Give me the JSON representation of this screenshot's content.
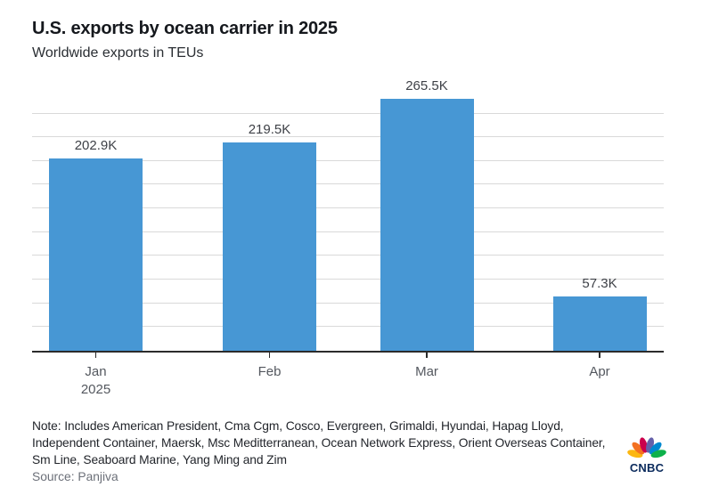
{
  "chart_data": {
    "type": "bar",
    "title": "U.S. exports by ocean carrier in 2025",
    "subtitle": "Worldwide exports in TEUs",
    "categories": [
      [
        "Jan",
        "2025"
      ],
      [
        "Feb"
      ],
      [
        "Mar"
      ],
      [
        "Apr"
      ]
    ],
    "values": [
      202900,
      219500,
      265500,
      57300
    ],
    "value_labels": [
      "202.9K",
      "219.5K",
      "265.5K",
      "57.3K"
    ],
    "unit": "TEUs",
    "ylim": [
      0,
      250000
    ],
    "gridline_step": 25000,
    "grid": true,
    "legend": false,
    "y_axis_labels_shown": false
  },
  "footer": {
    "note": "Note: Includes American President, Cma Cgm, Cosco, Evergreen, Grimaldi, Hyundai, Hapag Lloyd, Independent Container, Maersk, Msc Meditterranean, Ocean Network Express, Orient Overseas Container, Sm Line, Seaboard Marine, Yang Ming and Zim",
    "source": "Source: Panjiva",
    "logo_text": "CNBC",
    "logo_feather_colors": [
      "#FCB711",
      "#F37021",
      "#CC004C",
      "#6460AA",
      "#0089D0",
      "#0DB14B"
    ],
    "logo_text_color": "#0A2A5C"
  },
  "colors": {
    "bar": "#4797d4",
    "gridline": "#d9d9d9",
    "axis": "#2b2b2b",
    "title_text": "#15181d",
    "subtitle_text": "#2a2e33",
    "value_label_text": "#3e4147",
    "tick_label_text": "#54585f",
    "note_text": "#22252b",
    "source_text": "#6c7079"
  }
}
